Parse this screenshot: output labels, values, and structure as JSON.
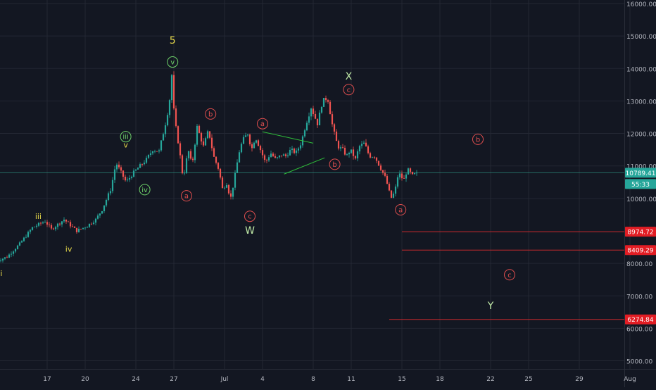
{
  "colors": {
    "background": "#131722",
    "grid": "#232733",
    "axis_text": "#b2b5be",
    "candle_up": "#26a69a",
    "candle_down": "#ef5350",
    "label_yellow": "#e6d84a",
    "label_green": "#6fd36a",
    "label_red": "#e04e4e",
    "label_white_green": "#bfe8a6",
    "price_badge_green": "#26a69a",
    "price_badge_red": "#e21d24",
    "trend_line": "#2fbf3a"
  },
  "chart_data": {
    "type": "candlestick",
    "title": "",
    "xlabel": "",
    "ylabel": "",
    "ylim": [
      4700,
      16300
    ],
    "grid": true,
    "y_ticks": [
      "16000.00",
      "15000.00",
      "14000.00",
      "13000.00",
      "12000.00",
      "11000.00",
      "10000.00",
      "8000.00",
      "7000.00",
      "6000.00",
      "5000.00"
    ],
    "y_tick_values": [
      16000,
      15000,
      14000,
      13000,
      12000,
      11000,
      10000,
      8000,
      7000,
      6000,
      5000
    ],
    "x_ticks": [
      "17",
      "20",
      "24",
      "27",
      "Jul",
      "4",
      "8",
      "11",
      "15",
      "18",
      "22",
      "25",
      "29",
      "Aug"
    ],
    "x_tick_days": [
      17,
      20,
      24,
      27,
      31,
      34,
      38,
      41,
      45,
      48,
      52,
      55,
      59,
      63
    ],
    "series_anchor_days": [
      13.0,
      14.0,
      15.0,
      16.0,
      17.0,
      17.5,
      18.5,
      19.5,
      20.3,
      21.0,
      21.5,
      22.2,
      22.6,
      23.0,
      23.4,
      24.0,
      24.5,
      25.0,
      25.5,
      26.0,
      26.5,
      26.8,
      27.0,
      27.2,
      27.6,
      27.9,
      28.3,
      28.6,
      29.0,
      29.5,
      29.9,
      30.3,
      30.7,
      31.0,
      31.4,
      31.6,
      31.9,
      32.3,
      32.6,
      33.0,
      33.3,
      33.6,
      34.0,
      34.4,
      34.8,
      35.2,
      35.7,
      36.0,
      36.4,
      36.8,
      37.2,
      37.6,
      38.0,
      38.5,
      38.9,
      39.3,
      39.7,
      40.1,
      40.5,
      40.8,
      41.1,
      41.5,
      41.8,
      42.2,
      42.6,
      43.0,
      43.4,
      43.9,
      44.3,
      44.6,
      44.9,
      45.3,
      45.6,
      46.0,
      46.2
    ],
    "series_anchor_prices": [
      8050,
      8200,
      8600,
      9100,
      9300,
      9050,
      9350,
      9000,
      9150,
      9350,
      9650,
      10300,
      11100,
      10800,
      10500,
      10800,
      11000,
      11200,
      11500,
      11450,
      12300,
      12900,
      13800,
      12500,
      11500,
      10600,
      11500,
      11000,
      12200,
      11600,
      12100,
      11300,
      10900,
      10300,
      10500,
      9900,
      10500,
      11400,
      11800,
      12000,
      11500,
      11900,
      11500,
      11100,
      11400,
      11200,
      11350,
      11300,
      11500,
      11400,
      11700,
      12300,
      12800,
      12300,
      13000,
      13100,
      12200,
      11600,
      11500,
      11300,
      11500,
      11200,
      11600,
      11700,
      11300,
      11300,
      11000,
      10600,
      10000,
      10200,
      10800,
      10550,
      10900,
      10700,
      10750
    ],
    "current_price": 10789.41,
    "countdown": "55:33",
    "price_levels": [
      {
        "label": "8974.72",
        "value": 8974.72
      },
      {
        "label": "8409.29",
        "value": 8409.29
      },
      {
        "label": "6274.84",
        "value": 6274.84
      }
    ],
    "wave_labels": [
      {
        "text": "ii",
        "day": 13.3,
        "price": 7700,
        "color": "label_yellow",
        "circle": false
      },
      {
        "text": "iii",
        "day": 16.3,
        "price": 9450,
        "color": "label_yellow",
        "circle": false
      },
      {
        "text": "iv",
        "day": 18.7,
        "price": 8450,
        "color": "label_yellow",
        "circle": false
      },
      {
        "text": "iii",
        "day": 23.2,
        "price": 11900,
        "color": "label_green",
        "circle": true
      },
      {
        "text": "v",
        "day": 23.2,
        "price": 11650,
        "color": "label_yellow",
        "circle": false
      },
      {
        "text": "iv",
        "day": 24.7,
        "price": 10270,
        "color": "label_green",
        "circle": true
      },
      {
        "text": "5",
        "day": 26.9,
        "price": 14850,
        "color": "label_yellow",
        "circle": false
      },
      {
        "text": "v",
        "day": 26.9,
        "price": 14200,
        "color": "label_green",
        "circle": true
      },
      {
        "text": "a",
        "day": 28.0,
        "price": 10080,
        "color": "label_red",
        "circle": true
      },
      {
        "text": "b",
        "day": 29.9,
        "price": 12600,
        "color": "label_red",
        "circle": true
      },
      {
        "text": "c",
        "day": 33.0,
        "price": 9450,
        "color": "label_red",
        "circle": true
      },
      {
        "text": "W",
        "day": 33.0,
        "price": 9000,
        "color": "label_white_green",
        "circle": false
      },
      {
        "text": "a",
        "day": 34.0,
        "price": 12300,
        "color": "label_red",
        "circle": true
      },
      {
        "text": "b",
        "day": 39.7,
        "price": 11050,
        "color": "label_red",
        "circle": true
      },
      {
        "text": "X",
        "day": 40.8,
        "price": 13750,
        "color": "label_white_green",
        "circle": false
      },
      {
        "text": "c",
        "day": 40.8,
        "price": 13350,
        "color": "label_red",
        "circle": true
      },
      {
        "text": "a",
        "day": 44.9,
        "price": 9650,
        "color": "label_red",
        "circle": true
      },
      {
        "text": "b",
        "day": 51.0,
        "price": 11820,
        "color": "label_red",
        "circle": true
      },
      {
        "text": "c",
        "day": 53.5,
        "price": 7650,
        "color": "label_red",
        "circle": true
      },
      {
        "text": "Y",
        "day": 52.0,
        "price": 6680,
        "color": "label_white_green",
        "circle": false
      }
    ],
    "triangle_lines": [
      {
        "from": [
          34.0,
          12050
        ],
        "to": [
          38.0,
          11700
        ]
      },
      {
        "from": [
          35.7,
          10750
        ],
        "to": [
          38.9,
          11250
        ]
      }
    ]
  }
}
